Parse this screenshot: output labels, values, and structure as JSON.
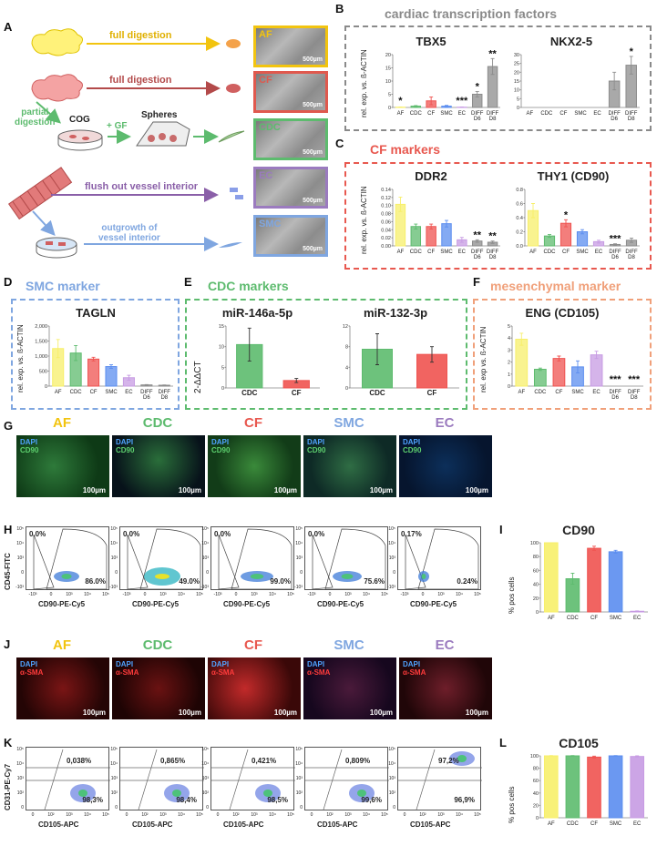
{
  "panels": {
    "A": "A",
    "B": "B",
    "C": "C",
    "D": "D",
    "E": "E",
    "F": "F",
    "G": "G",
    "H": "H",
    "I": "I",
    "J": "J",
    "K": "K",
    "L": "L"
  },
  "schematic": {
    "full_digestion_1": "full digestion",
    "full_digestion_2": "full digestion",
    "partial_digestion": "partial\ndigestion",
    "cog": "COG",
    "gf": "+ GF",
    "spheres": "Spheres",
    "flush": "flush out vessel interior",
    "outgrowth": "outgrowth of\nvessel interior",
    "micro_labels": [
      "AF",
      "CF",
      "CDC",
      "EC",
      "SMC"
    ],
    "scale": "500µm",
    "colors": {
      "AF": "#f2c40f",
      "CF": "#e0594e",
      "CDC": "#5dbb6e",
      "EC": "#9b7bbf",
      "SMC": "#7fa6e0"
    }
  },
  "chart_data": [
    {
      "id": "tbx5",
      "type": "bar",
      "title": "TBX5",
      "ylabel": "rel. exp. vs. ß-ACTIN",
      "ylim": [
        0,
        20
      ],
      "ticks": [
        "0",
        "5",
        "10",
        "15",
        "20"
      ],
      "categories": [
        "AF",
        "CDC",
        "CF",
        "SMC",
        "EC",
        "DIFF D6",
        "DIFF D8"
      ],
      "values": [
        0.1,
        0.5,
        2.5,
        0.5,
        0.1,
        5,
        15.5
      ],
      "errors": [
        0.1,
        0.2,
        1.5,
        0.3,
        0.1,
        1,
        3
      ],
      "stars": [
        "*",
        "",
        "",
        "",
        "***",
        "*",
        "**"
      ]
    },
    {
      "id": "nkx25",
      "type": "bar",
      "title": "NKX2-5",
      "ylabel": "",
      "ylim": [
        0,
        30
      ],
      "ticks": [
        "0",
        "5",
        "10",
        "15",
        "20",
        "25",
        "30"
      ],
      "categories": [
        "AF",
        "CDC",
        "CF",
        "SMC",
        "EC",
        "DIFF D6",
        "DIFF D8"
      ],
      "values": [
        0,
        0,
        0,
        0,
        0,
        15,
        24
      ],
      "errors": [
        0,
        0,
        0,
        0,
        0,
        5,
        5
      ],
      "stars": [
        "",
        "",
        "",
        "",
        "",
        "",
        "*"
      ]
    },
    {
      "id": "ddr2",
      "type": "bar",
      "title": "DDR2",
      "ylabel": "rel. exp. vs. ß-ACTIN",
      "ylim": [
        0,
        0.14
      ],
      "ticks": [
        "0.00",
        "0.02",
        "0.04",
        "0.06",
        "0.08",
        "0.10",
        "0.12",
        "0.14"
      ],
      "categories": [
        "AF",
        "CDC",
        "CF",
        "SMC",
        "EC",
        "DIFF D6",
        "DIFF D8"
      ],
      "values": [
        0.103,
        0.048,
        0.048,
        0.055,
        0.015,
        0.012,
        0.009
      ],
      "errors": [
        0.018,
        0.006,
        0.006,
        0.008,
        0.006,
        0.003,
        0.003
      ],
      "stars": [
        "",
        "",
        "",
        "",
        "",
        "**",
        "**"
      ]
    },
    {
      "id": "thy1",
      "type": "bar",
      "title": "THY1 (CD90)",
      "ylabel": "",
      "ylim": [
        0,
        0.8
      ],
      "ticks": [
        "0.0",
        "0.2",
        "0.4",
        "0.6",
        "0.8"
      ],
      "categories": [
        "AF",
        "CDC",
        "CF",
        "SMC",
        "EC",
        "DIFF D6",
        "DIFF D8"
      ],
      "values": [
        0.5,
        0.14,
        0.32,
        0.2,
        0.06,
        0.02,
        0.08
      ],
      "errors": [
        0.1,
        0.02,
        0.05,
        0.03,
        0.02,
        0.01,
        0.03
      ],
      "stars": [
        "",
        "",
        "*",
        "",
        "",
        "***",
        ""
      ]
    },
    {
      "id": "tagln",
      "type": "bar",
      "title": "TAGLN",
      "ylabel": "rel. exp. vs. ß-ACTIN",
      "ylim": [
        0,
        2000
      ],
      "ticks": [
        "0",
        "500",
        "1,000",
        "1,500",
        "2,000"
      ],
      "categories": [
        "AF",
        "CDC",
        "CF",
        "SMC",
        "EC",
        "DIFF D6",
        "DIFF D8"
      ],
      "values": [
        1250,
        1100,
        900,
        650,
        280,
        40,
        30
      ],
      "errors": [
        300,
        250,
        60,
        60,
        80,
        10,
        10
      ],
      "stars": [
        "",
        "",
        "",
        "",
        "",
        "",
        ""
      ]
    },
    {
      "id": "mir146",
      "type": "bar",
      "title": "miR-146a-5p",
      "ylabel": "2-ΔΔCT",
      "ylim": [
        0,
        15
      ],
      "ticks": [
        "0",
        "5",
        "10",
        "15"
      ],
      "categories": [
        "CDC",
        "CF"
      ],
      "values": [
        10.5,
        1.8
      ],
      "errors": [
        4,
        0.5
      ],
      "stars": [
        "",
        ""
      ]
    },
    {
      "id": "mir132",
      "type": "bar",
      "title": "miR-132-3p",
      "ylabel": "",
      "ylim": [
        0,
        12
      ],
      "ticks": [
        "0",
        "4",
        "8",
        "12"
      ],
      "categories": [
        "CDC",
        "CF"
      ],
      "values": [
        7.5,
        6.5
      ],
      "errors": [
        3,
        1.5
      ],
      "stars": [
        "",
        ""
      ]
    },
    {
      "id": "eng",
      "type": "bar",
      "title": "ENG (CD105)",
      "ylabel": "rel. exp vs. ß-ACTIN",
      "ylim": [
        0,
        5
      ],
      "ticks": [
        "0",
        "1",
        "2",
        "3",
        "4",
        "5"
      ],
      "categories": [
        "AF",
        "CDC",
        "CF",
        "SMC",
        "EC",
        "DIFF D6",
        "DIFF D8"
      ],
      "values": [
        3.9,
        1.4,
        2.3,
        1.6,
        2.6,
        0,
        0
      ],
      "errors": [
        0.5,
        0.1,
        0.2,
        0.5,
        0.3,
        0,
        0
      ],
      "stars": [
        "",
        "",
        "",
        "",
        "",
        "***",
        "***"
      ]
    },
    {
      "id": "cd90",
      "type": "bar",
      "title": "CD90",
      "ylabel": "% pos cells",
      "ylim": [
        0,
        100
      ],
      "ticks": [
        "0",
        "20",
        "40",
        "60",
        "80",
        "100"
      ],
      "categories": [
        "AF",
        "CDC",
        "CF",
        "SMC",
        "EC"
      ],
      "values": [
        100,
        48,
        92,
        87,
        1
      ],
      "errors": [
        0,
        8,
        3,
        2,
        0.5
      ],
      "stars": [
        "",
        "",
        "",
        "",
        ""
      ]
    },
    {
      "id": "cd105",
      "type": "bar",
      "title": "CD105",
      "ylabel": "% pos cells",
      "ylim": [
        0,
        100
      ],
      "ticks": [
        "0",
        "20",
        "40",
        "60",
        "80",
        "100"
      ],
      "categories": [
        "AF",
        "CDC",
        "CF",
        "SMC",
        "EC"
      ],
      "values": [
        100,
        100,
        98,
        100,
        99
      ],
      "errors": [
        0.5,
        0.5,
        1.5,
        0.5,
        1
      ],
      "stars": [
        "",
        "",
        "",
        "",
        ""
      ]
    }
  ],
  "bar_colors": [
    "#f7ef6a",
    "#5dbb6e",
    "#ef5350",
    "#5b8def",
    "#c79be3",
    "#8c8c8c",
    "#8c8c8c"
  ],
  "section_titles": {
    "B": "cardiac transcription factors",
    "C": "CF markers",
    "D": "SMC marker",
    "E": "CDC markers",
    "F": "mesenchymal marker"
  },
  "section_colors": {
    "B": "#8a8a8a",
    "C": "#e8584f",
    "D": "#7fa6e0",
    "E": "#5dbb6e",
    "F": "#f0a07a"
  },
  "if_row1": {
    "titles": [
      "AF",
      "CDC",
      "CF",
      "SMC",
      "EC"
    ],
    "title_colors": [
      "#f2c40f",
      "#5dbb6e",
      "#e8584f",
      "#7fa6e0",
      "#9b7bbf"
    ],
    "stain1": "DAPI",
    "stain2": "CD90",
    "scale": "100µm"
  },
  "if_row2": {
    "titles": [
      "AF",
      "CDC",
      "CF",
      "SMC",
      "EC"
    ],
    "title_colors": [
      "#f2c40f",
      "#5dbb6e",
      "#e8584f",
      "#7fa6e0",
      "#9b7bbf"
    ],
    "stain1": "DAPI",
    "stain2": "α-SMA",
    "scale": "100µm"
  },
  "flow_h": {
    "ylabel": "CD45-FITC",
    "xlabel": "CD90-PE-Cy5",
    "upper": [
      "0.0%",
      "0.0%",
      "0.0%",
      "0.0%",
      "0.17%"
    ],
    "lower": [
      "86.0%",
      "49.0%",
      "99.0%",
      "75.6%",
      "0.24%"
    ],
    "yticks": [
      "10⁵",
      "10⁴",
      "10³",
      "0",
      "-10³"
    ],
    "xticks": [
      "-10³",
      "0",
      "10³",
      "10⁴",
      "10⁵"
    ]
  },
  "flow_k": {
    "ylabel": "CD31-PE-Cy7",
    "xlabel": "CD105-APC",
    "upper": [
      "0,038%",
      "0,865%",
      "0,421%",
      "0,809%",
      "97,2%"
    ],
    "lower": [
      "98,3%",
      "98,4%",
      "98,5%",
      "99,6%",
      "96,9%"
    ],
    "yticks": [
      "10⁵",
      "10⁴",
      "10³",
      "10²",
      "0"
    ],
    "xticks": [
      "0",
      "10²",
      "10³",
      "10⁴",
      "10⁵"
    ]
  }
}
